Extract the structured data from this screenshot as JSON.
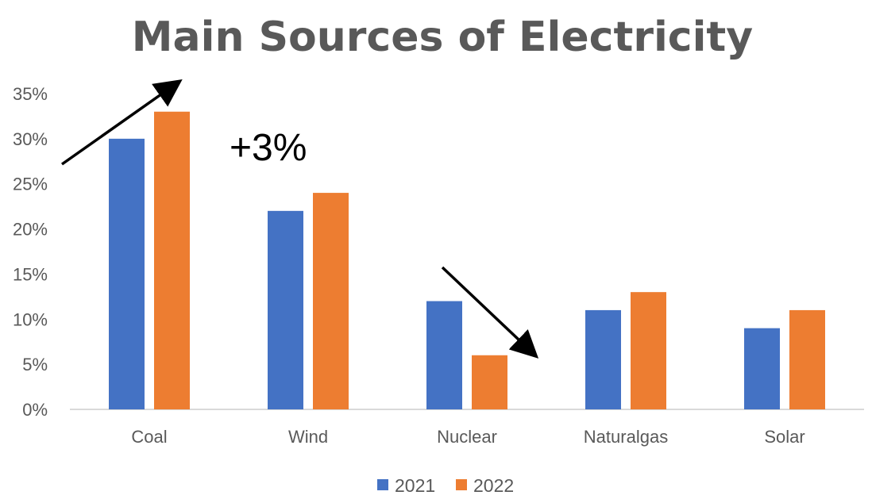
{
  "chart_data": {
    "type": "bar",
    "title": "Main Sources of Electricity",
    "categories": [
      "Coal",
      "Wind",
      "Nuclear",
      "Natural gas",
      "Solar"
    ],
    "category_labels": [
      "Coal",
      "Wind",
      "Nuclear",
      "Naturalgas",
      "Solar"
    ],
    "series": [
      {
        "name": "2021",
        "color": "#4472C4",
        "values": [
          30,
          22,
          12,
          11,
          9
        ]
      },
      {
        "name": "2022",
        "color": "#ED7D31",
        "values": [
          33,
          24,
          6,
          13,
          11
        ]
      }
    ],
    "y_tick_labels": [
      "0%",
      "5%",
      "10%",
      "15%",
      "20%",
      "25%",
      "30%",
      "35%"
    ],
    "ylim": [
      0,
      35
    ],
    "yunit": "%",
    "grid": false,
    "legend_position": "bottom",
    "annotations": [
      {
        "type": "text",
        "text": "+3%"
      },
      {
        "type": "arrow",
        "direction": "up-right",
        "near_category": "Coal"
      },
      {
        "type": "arrow",
        "direction": "down-right",
        "near_category": "Nuclear"
      }
    ]
  }
}
